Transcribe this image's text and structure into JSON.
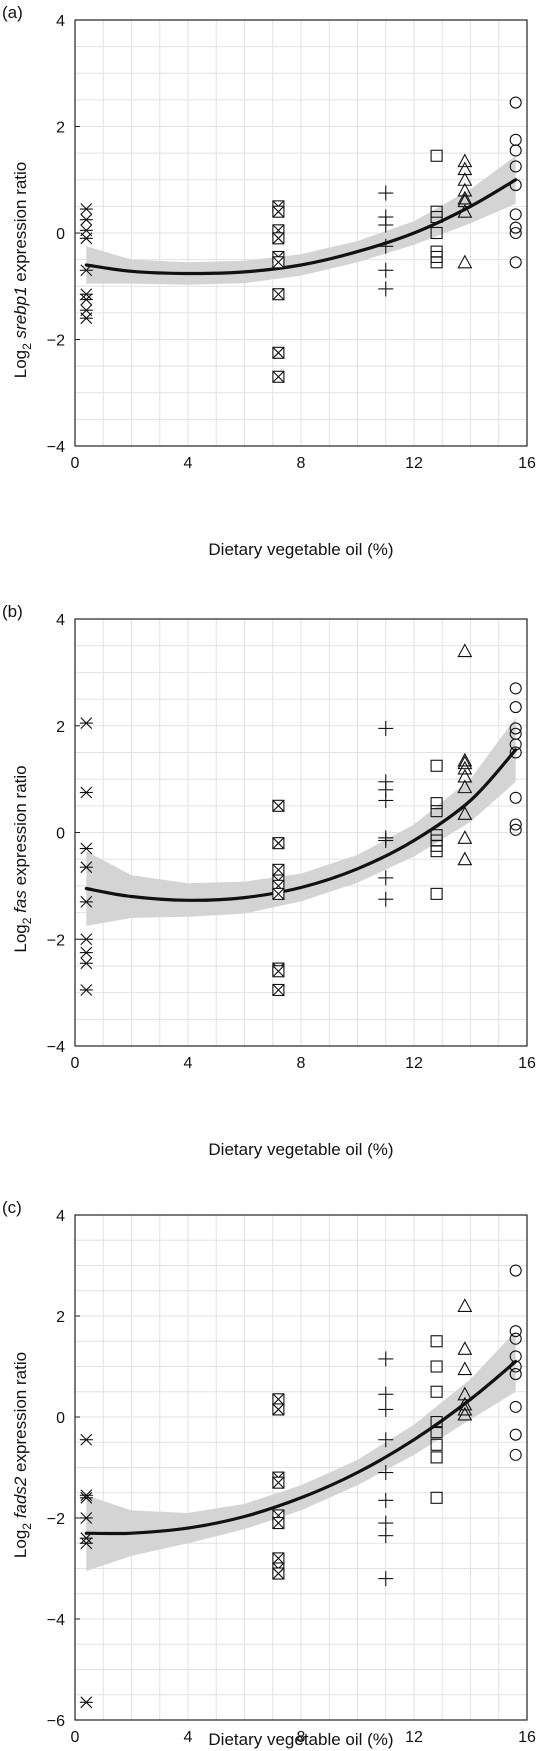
{
  "chart_data": [
    {
      "type": "scatter",
      "panel_label": "(a)",
      "ylabel_prefix": "Log",
      "ylabel_subscript": "2",
      "ylabel_gene": "srebp1",
      "ylabel_suffix": " expression ratio",
      "xlabel": "Dietary vegetable oil (%)",
      "xlim": [
        0,
        16
      ],
      "ylim": [
        -4,
        4
      ],
      "xticks": [
        "0",
        "4",
        "8",
        "12",
        "16"
      ],
      "yticks": [
        "4",
        "2",
        "0",
        "-2",
        "-4"
      ],
      "grid": true,
      "series": [
        {
          "marker": "asterisk",
          "points": [
            [
              0.4,
              0.45
            ],
            [
              0.4,
              0.25
            ],
            [
              0.4,
              0.05
            ],
            [
              0.4,
              -0.1
            ],
            [
              0.4,
              -0.7
            ],
            [
              0.4,
              -1.15
            ],
            [
              0.4,
              -1.25
            ],
            [
              0.4,
              -1.45
            ],
            [
              0.4,
              -1.6
            ]
          ]
        },
        {
          "marker": "boxed-x",
          "points": [
            [
              7.2,
              0.5
            ],
            [
              7.2,
              0.4
            ],
            [
              7.2,
              0.05
            ],
            [
              7.2,
              -0.1
            ],
            [
              7.2,
              -0.45
            ],
            [
              7.2,
              -0.55
            ],
            [
              7.2,
              -1.15
            ],
            [
              7.2,
              -2.25
            ],
            [
              7.2,
              -2.7
            ]
          ]
        },
        {
          "marker": "plus",
          "points": [
            [
              11.0,
              0.75
            ],
            [
              11.0,
              0.3
            ],
            [
              11.0,
              0.15
            ],
            [
              11.0,
              -0.25
            ],
            [
              11.0,
              -0.7
            ],
            [
              11.0,
              -1.05
            ]
          ]
        },
        {
          "marker": "square",
          "points": [
            [
              12.8,
              1.45
            ],
            [
              12.8,
              0.4
            ],
            [
              12.8,
              0.3
            ],
            [
              12.8,
              0.0
            ],
            [
              12.8,
              -0.35
            ],
            [
              12.8,
              -0.45
            ],
            [
              12.8,
              -0.55
            ]
          ]
        },
        {
          "marker": "triangle",
          "points": [
            [
              13.8,
              1.35
            ],
            [
              13.8,
              1.2
            ],
            [
              13.8,
              1.0
            ],
            [
              13.8,
              0.8
            ],
            [
              13.8,
              0.65
            ],
            [
              13.8,
              0.6
            ],
            [
              13.8,
              0.4
            ],
            [
              13.8,
              -0.55
            ]
          ]
        },
        {
          "marker": "circle",
          "points": [
            [
              15.6,
              2.45
            ],
            [
              15.6,
              1.75
            ],
            [
              15.6,
              1.55
            ],
            [
              15.6,
              1.25
            ],
            [
              15.6,
              0.9
            ],
            [
              15.6,
              0.35
            ],
            [
              15.6,
              0.1
            ],
            [
              15.6,
              0.0
            ],
            [
              15.6,
              -0.55
            ]
          ]
        }
      ],
      "fit": {
        "x": [
          0.4,
          2,
          4,
          6,
          8,
          10,
          12,
          14,
          15.6
        ],
        "y": [
          -0.6,
          -0.72,
          -0.76,
          -0.73,
          -0.6,
          -0.35,
          0.0,
          0.5,
          1.0
        ]
      },
      "band": {
        "x": [
          0.4,
          2,
          4,
          6,
          8,
          10,
          12,
          14,
          15.6
        ],
        "upper": [
          -0.25,
          -0.5,
          -0.55,
          -0.52,
          -0.4,
          -0.15,
          0.22,
          0.82,
          1.45
        ],
        "lower": [
          -0.95,
          -0.95,
          -0.97,
          -0.94,
          -0.8,
          -0.55,
          -0.22,
          0.18,
          0.55
        ]
      }
    },
    {
      "type": "scatter",
      "panel_label": "(b)",
      "ylabel_prefix": "Log",
      "ylabel_subscript": "2",
      "ylabel_gene": "fas",
      "ylabel_suffix": " expression ratio",
      "xlabel": "Dietary vegetable oil (%)",
      "xlim": [
        0,
        16
      ],
      "ylim": [
        -4,
        4
      ],
      "xticks": [
        "0",
        "4",
        "8",
        "12",
        "16"
      ],
      "yticks": [
        "4",
        "2",
        "0",
        "-2",
        "-4"
      ],
      "grid": true,
      "series": [
        {
          "marker": "asterisk",
          "points": [
            [
              0.4,
              2.05
            ],
            [
              0.4,
              0.75
            ],
            [
              0.4,
              -0.3
            ],
            [
              0.4,
              -0.65
            ],
            [
              0.4,
              -1.3
            ],
            [
              0.4,
              -2.0
            ],
            [
              0.4,
              -2.25
            ],
            [
              0.4,
              -2.45
            ],
            [
              0.4,
              -2.95
            ]
          ]
        },
        {
          "marker": "boxed-x",
          "points": [
            [
              7.2,
              0.5
            ],
            [
              7.2,
              -0.2
            ],
            [
              7.2,
              -0.7
            ],
            [
              7.2,
              -0.9
            ],
            [
              7.2,
              -1.0
            ],
            [
              7.2,
              -1.15
            ],
            [
              7.2,
              -2.55
            ],
            [
              7.2,
              -2.6
            ],
            [
              7.2,
              -2.95
            ]
          ]
        },
        {
          "marker": "plus",
          "points": [
            [
              11.0,
              1.95
            ],
            [
              11.0,
              0.95
            ],
            [
              11.0,
              0.8
            ],
            [
              11.0,
              0.6
            ],
            [
              11.0,
              -0.1
            ],
            [
              11.0,
              -0.15
            ],
            [
              11.0,
              -0.85
            ],
            [
              11.0,
              -1.25
            ]
          ]
        },
        {
          "marker": "square",
          "points": [
            [
              12.8,
              1.25
            ],
            [
              12.8,
              0.55
            ],
            [
              12.8,
              0.4
            ],
            [
              12.8,
              -0.05
            ],
            [
              12.8,
              -0.15
            ],
            [
              12.8,
              -0.25
            ],
            [
              12.8,
              -0.35
            ],
            [
              12.8,
              -1.15
            ]
          ]
        },
        {
          "marker": "triangle",
          "points": [
            [
              13.8,
              3.4
            ],
            [
              13.8,
              1.35
            ],
            [
              13.8,
              1.3
            ],
            [
              13.8,
              1.2
            ],
            [
              13.8,
              1.05
            ],
            [
              13.8,
              0.85
            ],
            [
              13.8,
              0.35
            ],
            [
              13.8,
              -0.1
            ],
            [
              13.8,
              -0.5
            ]
          ]
        },
        {
          "marker": "circle",
          "points": [
            [
              15.6,
              2.7
            ],
            [
              15.6,
              2.35
            ],
            [
              15.6,
              1.95
            ],
            [
              15.6,
              1.85
            ],
            [
              15.6,
              1.65
            ],
            [
              15.6,
              1.5
            ],
            [
              15.6,
              0.65
            ],
            [
              15.6,
              0.15
            ],
            [
              15.6,
              0.05
            ]
          ]
        }
      ],
      "fit": {
        "x": [
          0.4,
          2,
          4,
          6,
          8,
          10,
          12,
          14,
          15.6
        ],
        "y": [
          -1.05,
          -1.2,
          -1.27,
          -1.22,
          -1.03,
          -0.68,
          -0.15,
          0.6,
          1.55
        ]
      },
      "band": {
        "x": [
          0.4,
          2,
          4,
          6,
          8,
          10,
          12,
          14,
          15.6
        ],
        "upper": [
          -0.35,
          -0.8,
          -0.95,
          -0.92,
          -0.77,
          -0.42,
          0.15,
          1.0,
          2.15
        ],
        "lower": [
          -1.75,
          -1.6,
          -1.58,
          -1.52,
          -1.29,
          -0.94,
          -0.45,
          0.2,
          0.95
        ]
      }
    },
    {
      "type": "scatter",
      "panel_label": "(c)",
      "ylabel_prefix": "Log",
      "ylabel_subscript": "2",
      "ylabel_gene": "fads2",
      "ylabel_suffix": " expression ratio",
      "xlabel": "Dietary vegetable oil (%)",
      "xlim": [
        0,
        16
      ],
      "ylim": [
        -6,
        4
      ],
      "xticks": [
        "0",
        "4",
        "8",
        "12",
        "16"
      ],
      "yticks": [
        "4",
        "2",
        "0",
        "-2",
        "-4",
        "-6"
      ],
      "grid": true,
      "series": [
        {
          "marker": "asterisk",
          "points": [
            [
              0.4,
              -0.45
            ],
            [
              0.4,
              -1.55
            ],
            [
              0.4,
              -1.6
            ],
            [
              0.4,
              -2.0
            ],
            [
              0.4,
              -2.4
            ],
            [
              0.4,
              -2.5
            ],
            [
              0.4,
              -5.65
            ]
          ]
        },
        {
          "marker": "boxed-x",
          "points": [
            [
              7.2,
              0.35
            ],
            [
              7.2,
              0.15
            ],
            [
              7.2,
              -1.2
            ],
            [
              7.2,
              -1.3
            ],
            [
              7.2,
              -1.95
            ],
            [
              7.2,
              -2.1
            ],
            [
              7.2,
              -2.8
            ],
            [
              7.2,
              -3.0
            ],
            [
              7.2,
              -3.1
            ]
          ]
        },
        {
          "marker": "plus",
          "points": [
            [
              11.0,
              1.15
            ],
            [
              11.0,
              0.45
            ],
            [
              11.0,
              0.15
            ],
            [
              11.0,
              -0.45
            ],
            [
              11.0,
              -1.1
            ],
            [
              11.0,
              -1.65
            ],
            [
              11.0,
              -2.1
            ],
            [
              11.0,
              -2.35
            ],
            [
              11.0,
              -3.2
            ]
          ]
        },
        {
          "marker": "square",
          "points": [
            [
              12.8,
              1.5
            ],
            [
              12.8,
              1.0
            ],
            [
              12.8,
              0.5
            ],
            [
              12.8,
              -0.1
            ],
            [
              12.8,
              -0.3
            ],
            [
              12.8,
              -0.55
            ],
            [
              12.8,
              -0.8
            ],
            [
              12.8,
              -1.6
            ]
          ]
        },
        {
          "marker": "triangle",
          "points": [
            [
              13.8,
              2.2
            ],
            [
              13.8,
              1.35
            ],
            [
              13.8,
              0.95
            ],
            [
              13.8,
              0.45
            ],
            [
              13.8,
              0.25
            ],
            [
              13.8,
              0.15
            ],
            [
              13.8,
              0.05
            ]
          ]
        },
        {
          "marker": "circle",
          "points": [
            [
              15.6,
              2.9
            ],
            [
              15.6,
              1.7
            ],
            [
              15.6,
              1.55
            ],
            [
              15.6,
              1.2
            ],
            [
              15.6,
              1.0
            ],
            [
              15.6,
              0.85
            ],
            [
              15.6,
              0.2
            ],
            [
              15.6,
              -0.35
            ],
            [
              15.6,
              -0.75
            ]
          ]
        }
      ],
      "fit": {
        "x": [
          0.4,
          2,
          4,
          6,
          8,
          10,
          12,
          14,
          15.6
        ],
        "y": [
          -2.3,
          -2.3,
          -2.2,
          -1.97,
          -1.6,
          -1.1,
          -0.45,
          0.35,
          1.1
        ]
      },
      "band": {
        "x": [
          0.4,
          2,
          4,
          6,
          8,
          10,
          12,
          14,
          15.6
        ],
        "upper": [
          -1.55,
          -1.85,
          -1.9,
          -1.72,
          -1.35,
          -0.85,
          -0.15,
          0.75,
          1.7
        ],
        "lower": [
          -3.05,
          -2.75,
          -2.5,
          -2.22,
          -1.85,
          -1.35,
          -0.75,
          -0.05,
          0.5
        ]
      }
    }
  ]
}
